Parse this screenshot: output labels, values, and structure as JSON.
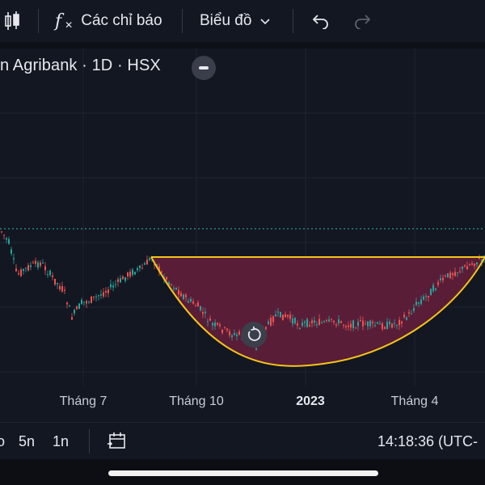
{
  "toolbar": {
    "indicators_label": "Các chỉ báo",
    "chart_label": "Biểu đồ"
  },
  "symbol": {
    "title": "n Agribank · 1D · HSX"
  },
  "x_axis": {
    "labels": [
      "Tháng 7",
      "Tháng 10",
      "2023",
      "Tháng 4"
    ]
  },
  "bottom_bar": {
    "range_partial": "o",
    "range_5y": "5n",
    "range_1y": "1n",
    "time": "14:18:36 (UTC-"
  },
  "colors": {
    "background": "#131722",
    "up_candle": "#26a69a",
    "down_candle": "#ef5350",
    "pattern_line": "#f5c518",
    "pattern_fill": "#6b1f3e",
    "price_line": "#2bb8a6"
  }
}
